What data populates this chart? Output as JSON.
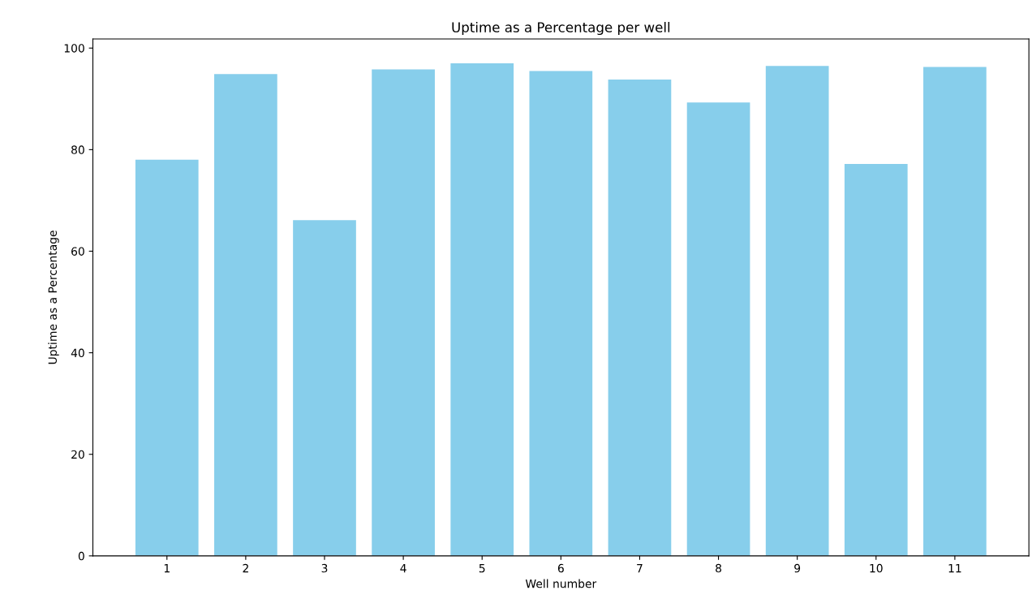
{
  "chart_data": {
    "type": "bar",
    "title": "Uptime as a Percentage per well",
    "xlabel": "Well number",
    "ylabel": "Uptime as a Percentage",
    "categories": [
      "1",
      "2",
      "3",
      "4",
      "5",
      "6",
      "7",
      "8",
      "9",
      "10",
      "11"
    ],
    "values": [
      78.0,
      94.9,
      66.1,
      95.8,
      97.0,
      95.5,
      93.8,
      89.3,
      96.5,
      77.2,
      96.3
    ],
    "color": "#87ceeb",
    "ylim": [
      0,
      101.8
    ],
    "yticks": [
      0,
      20,
      40,
      60,
      80,
      100
    ],
    "grid": false
  }
}
